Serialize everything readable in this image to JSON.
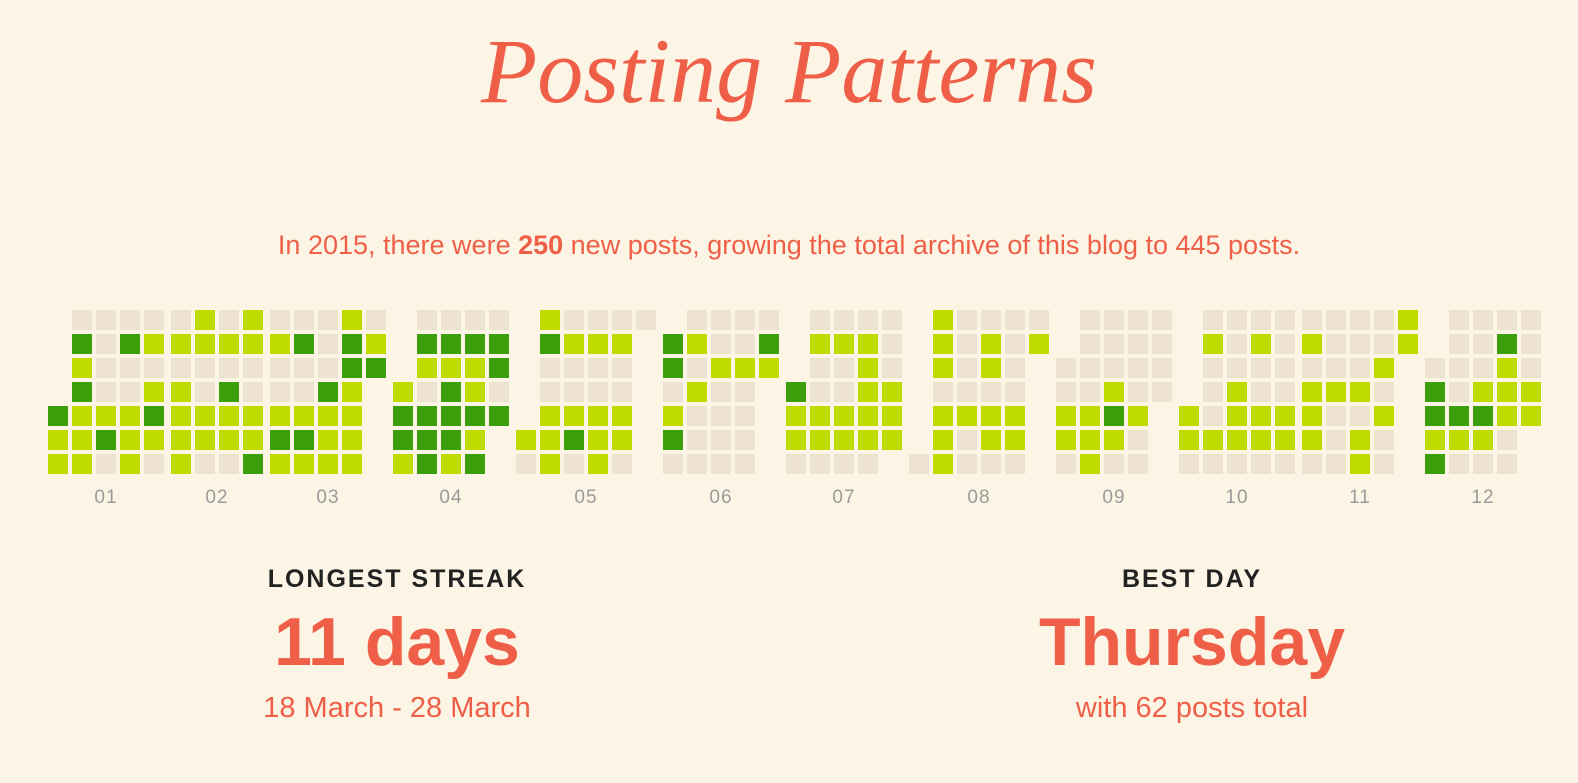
{
  "title": "Posting Patterns",
  "summary": {
    "prefix": "In ",
    "year": 2015,
    "mid": ", there were ",
    "new_posts": 250,
    "rest": " new posts, growing the total archive of this blog to 445 posts."
  },
  "chart_data": {
    "type": "calendar",
    "categories": [
      "01",
      "02",
      "03",
      "04",
      "05",
      "06",
      "07",
      "08",
      "09",
      "10",
      "11",
      "12"
    ],
    "colors": [
      "#ede3d0",
      "#bedc00",
      "#3a9f0b"
    ],
    "values": [
      [
        2,
        1,
        1,
        0,
        2,
        1,
        2,
        1,
        1,
        1,
        0,
        0,
        0,
        0,
        1,
        2,
        0,
        0,
        2,
        0,
        0,
        1,
        1,
        1,
        0,
        1,
        0,
        1,
        2,
        1,
        0
      ],
      [
        0,
        1,
        0,
        1,
        1,
        1,
        1,
        1,
        1,
        0,
        0,
        1,
        1,
        0,
        0,
        1,
        0,
        2,
        1,
        1,
        0,
        1,
        1,
        0,
        0,
        1,
        1,
        2
      ],
      [
        0,
        1,
        0,
        0,
        1,
        2,
        1,
        0,
        2,
        0,
        0,
        1,
        2,
        1,
        0,
        0,
        0,
        2,
        1,
        1,
        1,
        1,
        2,
        2,
        1,
        1,
        1,
        1,
        0,
        1,
        2
      ],
      [
        1,
        2,
        2,
        1,
        0,
        2,
        1,
        0,
        2,
        2,
        2,
        0,
        2,
        1,
        2,
        2,
        2,
        1,
        0,
        2,
        1,
        1,
        2,
        1,
        2,
        0,
        2,
        2,
        0,
        2
      ],
      [
        1,
        0,
        1,
        2,
        0,
        0,
        1,
        1,
        1,
        0,
        1,
        0,
        0,
        1,
        2,
        0,
        0,
        1,
        0,
        0,
        1,
        1,
        1,
        0,
        1,
        0,
        0,
        1,
        1,
        0,
        0
      ],
      [
        2,
        2,
        0,
        1,
        2,
        0,
        0,
        1,
        0,
        1,
        0,
        0,
        0,
        0,
        0,
        1,
        0,
        0,
        0,
        0,
        0,
        0,
        1,
        0,
        0,
        0,
        0,
        0,
        2,
        1
      ],
      [
        2,
        1,
        1,
        0,
        0,
        1,
        0,
        0,
        1,
        1,
        0,
        0,
        1,
        0,
        0,
        1,
        1,
        0,
        0,
        1,
        1,
        1,
        1,
        1,
        0,
        0,
        0,
        0,
        1,
        1,
        1
      ],
      [
        0,
        1,
        1,
        1,
        0,
        1,
        1,
        1,
        0,
        0,
        0,
        0,
        1,
        0,
        0,
        0,
        1,
        1,
        0,
        1,
        1,
        0,
        0,
        0,
        0,
        0,
        1,
        1,
        0,
        0,
        1
      ],
      [
        0,
        0,
        1,
        1,
        0,
        0,
        0,
        0,
        0,
        1,
        1,
        1,
        0,
        0,
        0,
        1,
        2,
        1,
        0,
        0,
        0,
        0,
        0,
        1,
        0,
        0,
        0,
        0,
        0,
        0
      ],
      [
        1,
        1,
        0,
        0,
        1,
        0,
        0,
        0,
        1,
        0,
        0,
        0,
        0,
        1,
        1,
        1,
        0,
        0,
        1,
        0,
        0,
        1,
        1,
        0,
        0,
        0,
        0,
        0,
        1,
        1,
        0
      ],
      [
        0,
        1,
        0,
        1,
        1,
        1,
        0,
        0,
        0,
        0,
        1,
        0,
        0,
        0,
        0,
        0,
        0,
        1,
        0,
        1,
        1,
        0,
        0,
        1,
        0,
        1,
        0,
        0,
        1,
        1
      ],
      [
        0,
        2,
        2,
        1,
        2,
        0,
        0,
        0,
        0,
        2,
        1,
        0,
        0,
        0,
        0,
        1,
        2,
        1,
        0,
        0,
        2,
        1,
        1,
        1,
        0,
        0,
        0,
        0,
        0,
        1,
        1
      ]
    ]
  },
  "stats": [
    {
      "label": "LONGEST STREAK",
      "value": "11 days",
      "detail": "18 March - 28 March"
    },
    {
      "label": "BEST DAY",
      "value": "Thursday",
      "detail": "with 62 posts total"
    }
  ]
}
